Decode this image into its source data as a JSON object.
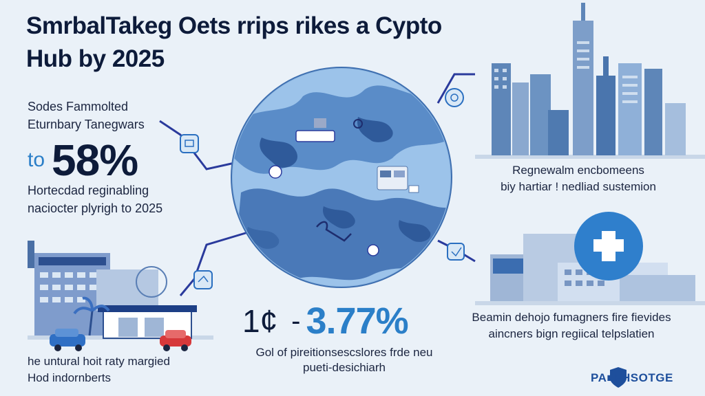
{
  "title": {
    "line1": "SmrbalTakeg Oets rrips rikes a Cypto",
    "line2": "Hub by 2025"
  },
  "left_panel": {
    "label_line1": "Sodes Fammolted",
    "label_line2": "Eturnbary Tanegwars",
    "big_prefix": "to",
    "big_value": "58%",
    "desc_line1": "Hortecdad reginabling",
    "desc_line2": "naciocter plyrigh to 2025"
  },
  "center_stat": {
    "prefix": "1¢",
    "dash": "-",
    "value": "3.77%",
    "desc_line1": "Gol of pireitionsescslores frde neu",
    "desc_line2": "pueti-desichiarh"
  },
  "right_top": {
    "line1": "Regnewalm encbomeens",
    "line2": "biy hartiar ! nedliad sustemion"
  },
  "right_bottom": {
    "line1": "Beamin dehojo fumagners fire fievides",
    "line2": "aincners bign regiical telpslatien"
  },
  "bottom_left": {
    "line1": "he untural hoit raty margied",
    "line2": "Hod indornberts"
  },
  "logo": {
    "text": "PA■FHSOTGE"
  },
  "colors": {
    "background": "#eaf1f8",
    "navy": "#0d1b3a",
    "accent_blue": "#2b7fc8",
    "connector": "#2a3a9c",
    "globe": "#6a9fd4"
  },
  "icons": [
    "globe-map",
    "city-skyline",
    "hospital-cross-icon",
    "clinic-building",
    "car-icon",
    "connector-node-icons"
  ]
}
